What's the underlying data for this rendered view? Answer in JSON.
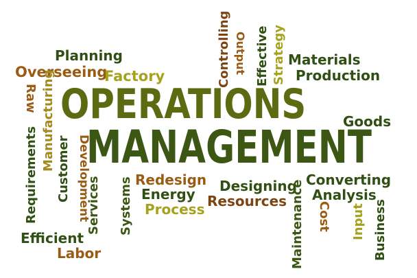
{
  "words": {
    "operations": "OPERATIONS",
    "management": "MANAGEMENT",
    "planning": "Planning",
    "overseeing": "Overseeing",
    "factory": "Factory",
    "raw": "Raw",
    "manufacturing": "Manufacturing",
    "requirements": "Requirements",
    "customer": "Customer",
    "development": "Development",
    "services": "Services",
    "efficient": "Efficient",
    "labor": "Labor",
    "systems": "Systems",
    "redesign": "Redesign",
    "energy": "Energy",
    "process": "Process",
    "designing": "Designing",
    "resources": "Resources",
    "maintenance": "Maintenance",
    "converting": "Converting",
    "analysis": "Analysis",
    "cost": "Cost",
    "input": "Input",
    "business": "Business",
    "goods": "Goods",
    "controlling": "Controlling",
    "output": "Output",
    "effective": "Effective",
    "strategy": "Strategy",
    "materials": "Materials",
    "production": "Production"
  },
  "colors": {
    "dark_green": "#2f4f13",
    "olive": "#5a6b12",
    "brown": "#7b4513",
    "orange_brown": "#9a5b14",
    "yellow_olive": "#a6a21e",
    "gold": "#a38a1f"
  }
}
